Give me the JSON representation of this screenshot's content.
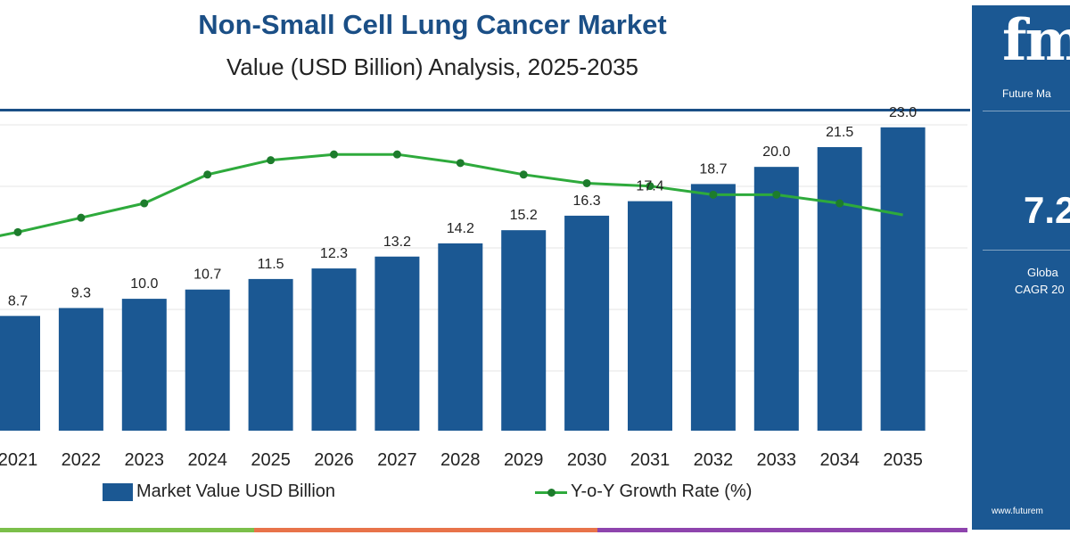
{
  "chart_data": {
    "type": "bar",
    "title": "Non-Small Cell Lung Cancer Market",
    "subtitle": "Value (USD Billion) Analysis, 2025-2035",
    "categories": [
      "2021",
      "2022",
      "2023",
      "2024",
      "2025",
      "2026",
      "2027",
      "2028",
      "2029",
      "2030",
      "2031",
      "2032",
      "2033",
      "2034",
      "2035"
    ],
    "series": [
      {
        "name": "Market Value USD Billion",
        "type": "bar",
        "values": [
          8.7,
          9.3,
          10.0,
          10.7,
          11.5,
          12.3,
          13.2,
          14.2,
          15.2,
          16.3,
          17.4,
          18.7,
          20.0,
          21.5,
          23.0
        ],
        "labels": [
          "8.7",
          "9.3",
          "10.0",
          "10.7",
          "11.5",
          "12.3",
          "13.2",
          "14.2",
          "15.2",
          "16.3",
          "17.4",
          "18.7",
          "20.0",
          "21.5",
          "23.0"
        ]
      },
      {
        "name": "Y-o-Y Growth Rate (%)",
        "type": "line",
        "values": [
          6.9,
          7.4,
          7.9,
          8.9,
          9.4,
          9.6,
          9.6,
          9.3,
          8.9,
          8.6,
          8.5,
          8.2,
          8.2,
          7.9,
          7.5
        ]
      }
    ],
    "ylim": [
      0,
      24
    ],
    "y2lim": [
      0,
      11
    ],
    "grid": true,
    "legend_position": "bottom",
    "colors": {
      "bar": "#1b5893",
      "line": "#2eaa3c",
      "marker": "#1d7c2c",
      "grid": "#e6e6e6",
      "title": "#1b4f86"
    }
  },
  "legend": {
    "bar_label": "Market Value USD Billion",
    "line_label": "Y-o-Y Growth Rate (%)"
  },
  "side_panel": {
    "logo": "fmi",
    "tagline": "Future Ma",
    "cagr_value": "7.2",
    "cagr_label_1": "Globa",
    "cagr_label_2": "CAGR 20",
    "website": "www.futurem",
    "color": "#1b5893"
  },
  "footer_colors": [
    "#7bbf4a",
    "#e8734a",
    "#8e44ad"
  ]
}
